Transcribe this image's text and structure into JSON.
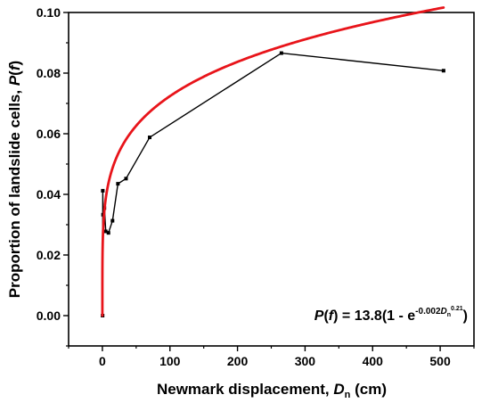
{
  "chart_data": {
    "type": "line",
    "xlim": [
      -50,
      550
    ],
    "ylim": [
      -0.01,
      0.1
    ],
    "x_ticks": [
      0,
      100,
      200,
      300,
      400,
      500
    ],
    "y_ticks": [
      0.0,
      0.02,
      0.04,
      0.06,
      0.08,
      0.1
    ],
    "x_tick_labels": [
      "0",
      "100",
      "200",
      "300",
      "400",
      "500"
    ],
    "y_tick_labels": [
      "0.00",
      "0.02",
      "0.04",
      "0.06",
      "0.08",
      "0.10"
    ],
    "xlabel": {
      "main": "Newmark displacement, ",
      "var": "D",
      "sub": "n",
      "unit": " (cm)"
    },
    "ylabel": {
      "main": "Proportion of landslide cells, ",
      "var": "P",
      "paren_open": "(",
      "var2": "f",
      "paren_close": ")"
    },
    "grid": false,
    "legend": "none",
    "series": [
      {
        "style": "line-with-square-markers",
        "color": "#000000",
        "x": [
          0.3,
          0.6,
          1,
          3,
          5,
          9,
          15,
          23,
          35,
          70,
          265,
          505
        ],
        "y": [
          0.0,
          0.0412,
          0.0333,
          0.0355,
          0.0278,
          0.0273,
          0.0313,
          0.0435,
          0.0452,
          0.0588,
          0.0866,
          0.0808
        ]
      },
      {
        "style": "fitted-curve",
        "color": "#e8141a",
        "formula": "P(f) = 13.8(1 - exp(-0.002 * Dn^0.21))",
        "coefficients": {
          "a": 13.8,
          "b": 0.002,
          "c": 0.21
        },
        "x_range": [
          0,
          505
        ]
      }
    ],
    "annotation": {
      "lhs_var": "P",
      "lhs_paren_open": "(",
      "lhs_var2": "f",
      "lhs_paren_close": ")",
      "eq": " = 13.8(1 - e",
      "exp_coef": "-0.002",
      "exp_var": "D",
      "exp_sub": "n",
      "exp_pow": "0.21",
      "close": ")",
      "position": "bottom-right"
    }
  }
}
